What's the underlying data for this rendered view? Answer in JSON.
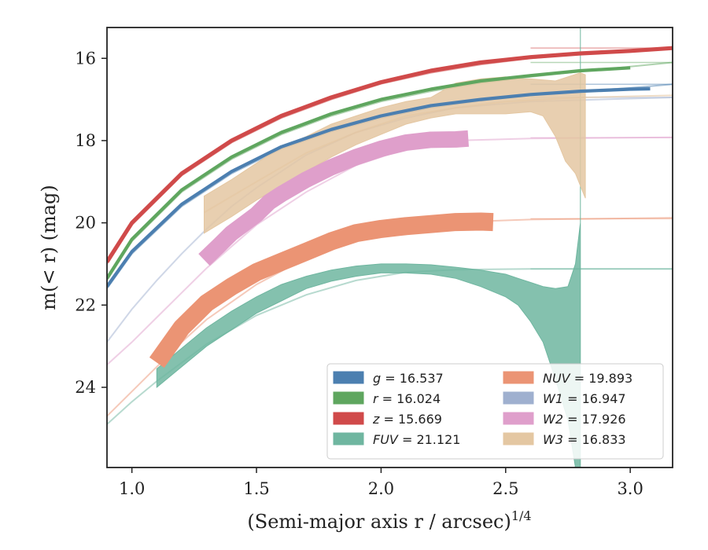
{
  "chart_data": {
    "type": "line",
    "xlabel": "(Semi-major axis r / arcsec)",
    "xlabel_exponent": "1/4",
    "ylabel": "m(< r) (mag)",
    "xlim": [
      0.9,
      3.17
    ],
    "ylim": [
      25.95,
      15.25
    ],
    "y_inverted": true,
    "xticks": [
      1.0,
      1.5,
      2.0,
      2.5,
      3.0
    ],
    "xtick_labels": [
      "1.0",
      "1.5",
      "2.0",
      "2.5",
      "3.0"
    ],
    "yticks": [
      16,
      18,
      20,
      22,
      24
    ],
    "ytick_labels": [
      "16",
      "18",
      "20",
      "22",
      "24"
    ],
    "grid": false,
    "legend_location": "lower-right",
    "series": [
      {
        "name": "g = 16.537",
        "band": "g",
        "value": "16.537",
        "color": "#4c7fb0",
        "asymptote": 16.63,
        "model": [
          [
            0.9,
            21.6
          ],
          [
            1.0,
            20.75
          ],
          [
            1.2,
            19.6
          ],
          [
            1.4,
            18.8
          ],
          [
            1.6,
            18.2
          ],
          [
            1.8,
            17.78
          ],
          [
            2.0,
            17.45
          ],
          [
            2.2,
            17.2
          ],
          [
            2.4,
            17.03
          ],
          [
            2.6,
            16.9
          ],
          [
            2.8,
            16.8
          ],
          [
            3.0,
            16.72
          ],
          [
            3.17,
            16.63
          ]
        ],
        "data": [
          [
            0.9,
            21.55
          ],
          [
            1.0,
            20.7
          ],
          [
            1.2,
            19.55
          ],
          [
            1.4,
            18.75
          ],
          [
            1.6,
            18.15
          ],
          [
            1.8,
            17.73
          ],
          [
            2.0,
            17.4
          ],
          [
            2.2,
            17.15
          ],
          [
            2.4,
            17.0
          ],
          [
            2.6,
            16.88
          ],
          [
            2.8,
            16.8
          ],
          [
            3.0,
            16.75
          ],
          [
            3.08,
            16.74
          ]
        ],
        "band_width": 0.04
      },
      {
        "name": "r = 16.024",
        "band": "r",
        "value": "16.024",
        "color": "#5fa65f",
        "asymptote": 16.1,
        "model": [
          [
            0.9,
            21.4
          ],
          [
            1.0,
            20.45
          ],
          [
            1.2,
            19.25
          ],
          [
            1.4,
            18.45
          ],
          [
            1.6,
            17.85
          ],
          [
            1.8,
            17.4
          ],
          [
            2.0,
            17.05
          ],
          [
            2.2,
            16.8
          ],
          [
            2.4,
            16.6
          ],
          [
            2.6,
            16.45
          ],
          [
            2.8,
            16.32
          ],
          [
            3.0,
            16.2
          ],
          [
            3.17,
            16.1
          ]
        ],
        "data": [
          [
            0.9,
            21.35
          ],
          [
            1.0,
            20.4
          ],
          [
            1.2,
            19.2
          ],
          [
            1.4,
            18.4
          ],
          [
            1.6,
            17.8
          ],
          [
            1.8,
            17.35
          ],
          [
            2.0,
            17.0
          ],
          [
            2.2,
            16.75
          ],
          [
            2.4,
            16.55
          ],
          [
            2.6,
            16.42
          ],
          [
            2.8,
            16.3
          ],
          [
            3.0,
            16.23
          ]
        ],
        "band_width": 0.04
      },
      {
        "name": "z = 15.669",
        "band": "z",
        "value": "15.669",
        "color": "#d04a4a",
        "asymptote": 15.75,
        "model": [
          [
            0.9,
            21.0
          ],
          [
            1.0,
            20.05
          ],
          [
            1.2,
            18.85
          ],
          [
            1.4,
            18.05
          ],
          [
            1.6,
            17.45
          ],
          [
            1.8,
            17.0
          ],
          [
            2.0,
            16.62
          ],
          [
            2.2,
            16.35
          ],
          [
            2.4,
            16.15
          ],
          [
            2.6,
            16.0
          ],
          [
            2.8,
            15.9
          ],
          [
            3.0,
            15.82
          ],
          [
            3.17,
            15.75
          ]
        ],
        "data": [
          [
            0.9,
            20.95
          ],
          [
            1.0,
            20.0
          ],
          [
            1.2,
            18.8
          ],
          [
            1.4,
            18.0
          ],
          [
            1.6,
            17.4
          ],
          [
            1.8,
            16.95
          ],
          [
            2.0,
            16.58
          ],
          [
            2.2,
            16.3
          ],
          [
            2.4,
            16.1
          ],
          [
            2.6,
            15.97
          ],
          [
            2.8,
            15.88
          ],
          [
            3.0,
            15.82
          ],
          [
            3.17,
            15.75
          ]
        ],
        "band_width": 0.05
      },
      {
        "name": "FUV = 21.121",
        "band": "FUV",
        "value": "21.121",
        "color": "#6fb6a0",
        "asymptote": 21.12,
        "model": [
          [
            0.9,
            24.9
          ],
          [
            1.0,
            24.35
          ],
          [
            1.1,
            23.85
          ],
          [
            1.2,
            23.4
          ],
          [
            1.3,
            22.95
          ],
          [
            1.5,
            22.25
          ],
          [
            1.7,
            21.75
          ],
          [
            1.9,
            21.4
          ],
          [
            2.1,
            21.2
          ],
          [
            2.3,
            21.14
          ],
          [
            2.6,
            21.12
          ],
          [
            3.17,
            21.12
          ]
        ],
        "band_upper": [
          [
            1.1,
            23.55
          ],
          [
            1.2,
            23.05
          ],
          [
            1.3,
            22.55
          ],
          [
            1.4,
            22.15
          ],
          [
            1.5,
            21.8
          ],
          [
            1.6,
            21.5
          ],
          [
            1.7,
            21.3
          ],
          [
            1.8,
            21.15
          ],
          [
            1.9,
            21.05
          ],
          [
            2.0,
            21.0
          ],
          [
            2.1,
            21.0
          ],
          [
            2.2,
            21.02
          ],
          [
            2.3,
            21.08
          ],
          [
            2.4,
            21.15
          ],
          [
            2.5,
            21.25
          ],
          [
            2.55,
            21.35
          ],
          [
            2.6,
            21.45
          ],
          [
            2.65,
            21.55
          ],
          [
            2.7,
            21.6
          ],
          [
            2.75,
            21.55
          ],
          [
            2.78,
            21.0
          ],
          [
            2.8,
            20.0
          ],
          [
            2.8,
            15.25
          ]
        ],
        "band_lower": [
          [
            1.1,
            24.0
          ],
          [
            1.2,
            23.5
          ],
          [
            1.3,
            23.0
          ],
          [
            1.4,
            22.6
          ],
          [
            1.5,
            22.2
          ],
          [
            1.6,
            21.9
          ],
          [
            1.7,
            21.6
          ],
          [
            1.8,
            21.42
          ],
          [
            1.9,
            21.3
          ],
          [
            2.0,
            21.22
          ],
          [
            2.1,
            21.22
          ],
          [
            2.2,
            21.25
          ],
          [
            2.3,
            21.35
          ],
          [
            2.4,
            21.55
          ],
          [
            2.5,
            21.8
          ],
          [
            2.55,
            22.0
          ],
          [
            2.6,
            22.4
          ],
          [
            2.65,
            22.9
          ],
          [
            2.7,
            23.8
          ],
          [
            2.75,
            24.8
          ],
          [
            2.78,
            25.95
          ],
          [
            2.8,
            25.95
          ]
        ]
      },
      {
        "name": "NUV = 19.893",
        "band": "NUV",
        "value": "19.893",
        "color": "#eb9474",
        "asymptote": 19.9,
        "model": [
          [
            0.9,
            24.7
          ],
          [
            1.0,
            24.1
          ],
          [
            1.1,
            23.5
          ],
          [
            1.2,
            22.9
          ],
          [
            1.3,
            22.35
          ],
          [
            1.5,
            21.5
          ],
          [
            1.7,
            20.85
          ],
          [
            1.9,
            20.4
          ],
          [
            2.1,
            20.12
          ],
          [
            2.3,
            19.98
          ],
          [
            2.6,
            19.92
          ],
          [
            3.17,
            19.88
          ]
        ],
        "data": [
          [
            1.1,
            23.4
          ],
          [
            1.2,
            22.55
          ],
          [
            1.3,
            21.95
          ],
          [
            1.4,
            21.55
          ],
          [
            1.5,
            21.2
          ],
          [
            1.6,
            20.95
          ],
          [
            1.7,
            20.7
          ],
          [
            1.8,
            20.45
          ],
          [
            1.9,
            20.25
          ],
          [
            2.0,
            20.15
          ],
          [
            2.1,
            20.08
          ],
          [
            2.2,
            20.03
          ],
          [
            2.3,
            19.98
          ],
          [
            2.4,
            19.97
          ],
          [
            2.45,
            19.98
          ]
        ],
        "band_width": 0.22
      },
      {
        "name": "W1 = 16.947",
        "band": "W1",
        "value": "16.947",
        "color": "#9fb0cf",
        "asymptote": 16.95,
        "model": [
          [
            0.9,
            22.9
          ],
          [
            1.0,
            22.1
          ],
          [
            1.1,
            21.4
          ],
          [
            1.2,
            20.75
          ],
          [
            1.3,
            20.15
          ],
          [
            1.4,
            19.6
          ],
          [
            1.5,
            19.15
          ],
          [
            1.7,
            18.35
          ],
          [
            1.9,
            17.8
          ],
          [
            2.1,
            17.45
          ],
          [
            2.3,
            17.2
          ],
          [
            2.6,
            17.05
          ],
          [
            3.17,
            16.95
          ]
        ]
      },
      {
        "name": "W2 = 17.926",
        "band": "W2",
        "value": "17.926",
        "color": "#df9fcb",
        "asymptote": 17.93,
        "model": [
          [
            0.9,
            23.45
          ],
          [
            1.0,
            22.9
          ],
          [
            1.1,
            22.3
          ],
          [
            1.2,
            21.7
          ],
          [
            1.3,
            21.1
          ],
          [
            1.5,
            20.05
          ],
          [
            1.7,
            19.25
          ],
          [
            1.9,
            18.6
          ],
          [
            2.1,
            18.2
          ],
          [
            2.3,
            18.0
          ],
          [
            2.6,
            17.95
          ],
          [
            3.17,
            17.92
          ]
        ],
        "data": [
          [
            1.29,
            20.9
          ],
          [
            1.35,
            20.55
          ],
          [
            1.4,
            20.25
          ],
          [
            1.5,
            19.8
          ],
          [
            1.55,
            19.5
          ],
          [
            1.6,
            19.3
          ],
          [
            1.7,
            18.95
          ],
          [
            1.8,
            18.65
          ],
          [
            1.9,
            18.4
          ],
          [
            2.0,
            18.2
          ],
          [
            2.1,
            18.05
          ],
          [
            2.2,
            17.98
          ],
          [
            2.3,
            17.97
          ],
          [
            2.35,
            17.95
          ]
        ],
        "band_width": 0.2
      },
      {
        "name": "W3 = 16.833",
        "band": "W3",
        "value": "16.833",
        "color": "#e4c7a2",
        "band_upper": [
          [
            1.29,
            19.35
          ],
          [
            1.4,
            18.95
          ],
          [
            1.5,
            18.55
          ],
          [
            1.6,
            18.15
          ],
          [
            1.7,
            17.9
          ],
          [
            1.8,
            17.6
          ],
          [
            1.9,
            17.4
          ],
          [
            2.0,
            17.2
          ],
          [
            2.1,
            17.05
          ],
          [
            2.2,
            16.95
          ],
          [
            2.3,
            16.6
          ],
          [
            2.4,
            16.5
          ],
          [
            2.5,
            16.45
          ],
          [
            2.55,
            16.5
          ],
          [
            2.6,
            16.5
          ],
          [
            2.7,
            16.55
          ],
          [
            2.8,
            16.35
          ],
          [
            2.82,
            16.4
          ]
        ],
        "band_lower": [
          [
            2.82,
            19.4
          ],
          [
            2.78,
            18.8
          ],
          [
            2.74,
            18.5
          ],
          [
            2.7,
            17.9
          ],
          [
            2.65,
            17.4
          ],
          [
            2.6,
            17.3
          ],
          [
            2.5,
            17.35
          ],
          [
            2.4,
            17.35
          ],
          [
            2.3,
            17.35
          ],
          [
            2.2,
            17.45
          ],
          [
            2.1,
            17.6
          ],
          [
            2.0,
            17.85
          ],
          [
            1.9,
            18.1
          ],
          [
            1.8,
            18.4
          ],
          [
            1.7,
            18.75
          ],
          [
            1.6,
            19.1
          ],
          [
            1.5,
            19.45
          ],
          [
            1.4,
            19.85
          ],
          [
            1.29,
            20.25
          ]
        ],
        "guide": [
          [
            1.29,
            19.75
          ],
          [
            1.5,
            19.0
          ],
          [
            1.7,
            18.3
          ],
          [
            1.9,
            17.8
          ],
          [
            2.1,
            17.4
          ],
          [
            2.3,
            17.2
          ],
          [
            2.5,
            17.05
          ],
          [
            2.8,
            16.95
          ],
          [
            3.17,
            16.9
          ]
        ]
      }
    ],
    "legend": {
      "columns": [
        [
          {
            "band": "g",
            "value": "16.537",
            "color": "#4c7fb0"
          },
          {
            "band": "r",
            "value": "16.024",
            "color": "#5fa65f"
          },
          {
            "band": "z",
            "value": "15.669",
            "color": "#d04a4a"
          },
          {
            "band": "FUV",
            "value": "21.121",
            "color": "#6fb6a0"
          }
        ],
        [
          {
            "band": "NUV",
            "value": "19.893",
            "color": "#eb9474"
          },
          {
            "band": "W1",
            "value": "16.947",
            "color": "#9fb0cf"
          },
          {
            "band": "W2",
            "value": "17.926",
            "color": "#df9fcb"
          },
          {
            "band": "W3",
            "value": "16.833",
            "color": "#e4c7a2"
          }
        ]
      ]
    }
  }
}
